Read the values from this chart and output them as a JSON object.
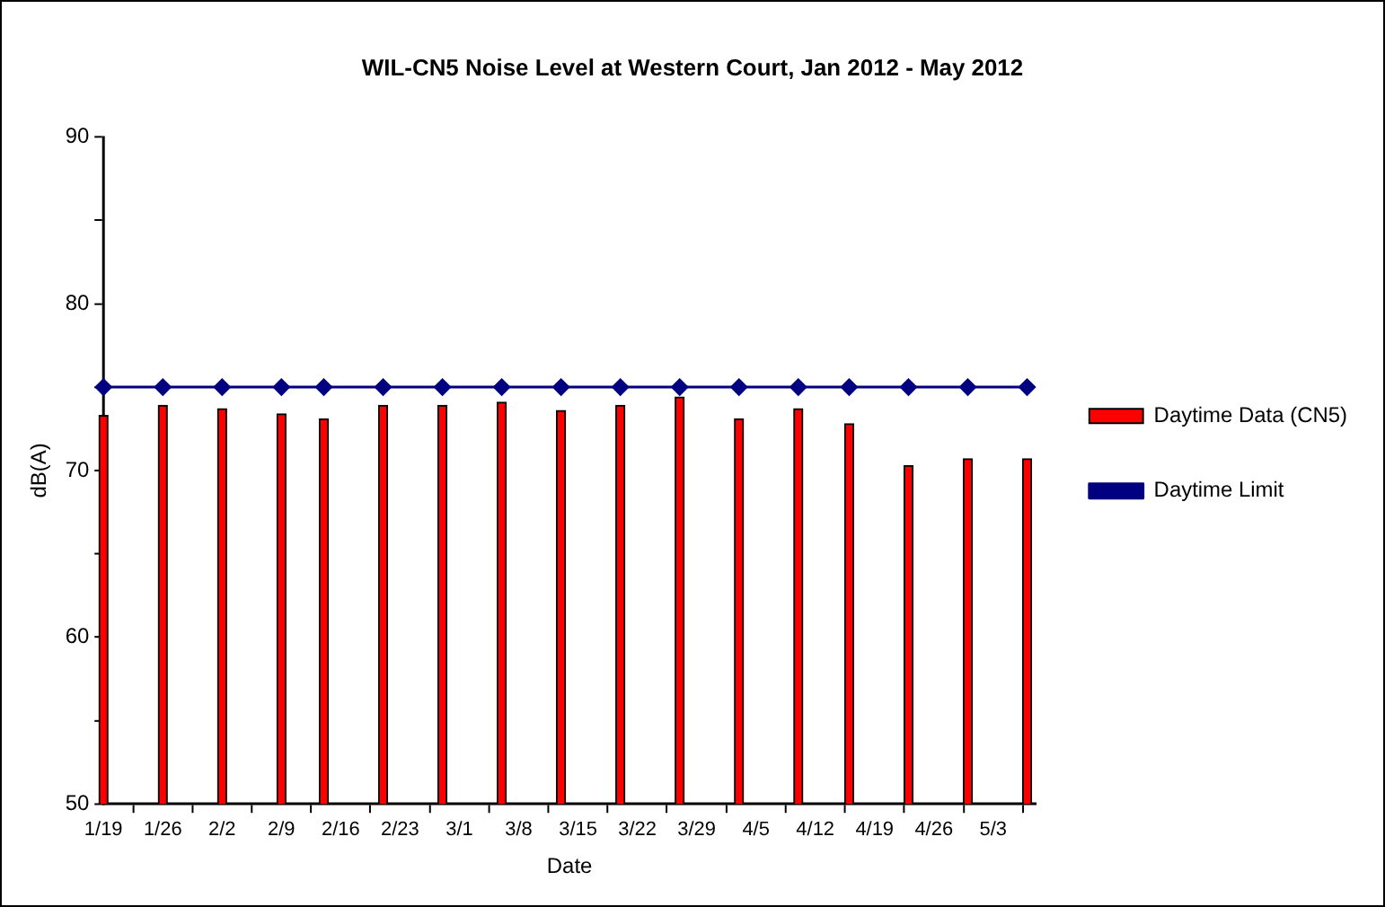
{
  "chart_data": {
    "type": "bar",
    "title": "WIL-CN5 Noise Level at Western Court, Jan 2012 - May 2012",
    "xlabel": "Date",
    "ylabel": "dB(A)",
    "x": [
      "2012-01-19",
      "2012-01-26",
      "2012-02-02",
      "2012-02-09",
      "2012-02-14",
      "2012-02-21",
      "2012-02-28",
      "2012-03-06",
      "2012-03-13",
      "2012-03-20",
      "2012-03-27",
      "2012-04-03",
      "2012-04-10",
      "2012-04-16",
      "2012-04-23",
      "2012-04-30",
      "2012-05-07"
    ],
    "series": [
      {
        "name": "Daytime Data (CN5)",
        "color": "#ff0000",
        "values": [
          73.3,
          73.9,
          73.7,
          73.4,
          73.1,
          73.9,
          73.9,
          74.1,
          73.6,
          73.9,
          74.4,
          73.1,
          73.7,
          72.8,
          70.3,
          70.7,
          70.7
        ]
      },
      {
        "name": "Daytime Limit",
        "type": "line",
        "color": "#000080",
        "marker": "diamond",
        "values": [
          75,
          75,
          75,
          75,
          75,
          75,
          75,
          75,
          75,
          75,
          75,
          75,
          75,
          75,
          75,
          75,
          75
        ]
      }
    ],
    "xlim": [
      "2012-01-19",
      "2012-05-08"
    ],
    "xticks": [
      {
        "value": "2012-01-19",
        "label": "1/19"
      },
      {
        "value": "2012-01-26",
        "label": "1/26"
      },
      {
        "value": "2012-02-02",
        "label": "2/2"
      },
      {
        "value": "2012-02-09",
        "label": "2/9"
      },
      {
        "value": "2012-02-16",
        "label": "2/16"
      },
      {
        "value": "2012-02-23",
        "label": "2/23"
      },
      {
        "value": "2012-03-01",
        "label": "3/1"
      },
      {
        "value": "2012-03-08",
        "label": "3/8"
      },
      {
        "value": "2012-03-15",
        "label": "3/15"
      },
      {
        "value": "2012-03-22",
        "label": "3/22"
      },
      {
        "value": "2012-03-29",
        "label": "3/29"
      },
      {
        "value": "2012-04-05",
        "label": "4/5"
      },
      {
        "value": "2012-04-12",
        "label": "4/12"
      },
      {
        "value": "2012-04-19",
        "label": "4/19"
      },
      {
        "value": "2012-04-26",
        "label": "4/26"
      },
      {
        "value": "2012-05-03",
        "label": "5/3"
      }
    ],
    "ylim": [
      50,
      90
    ],
    "yticks": [
      50,
      {
        "value": 55,
        "label": null
      },
      60,
      {
        "value": 65,
        "label": null
      },
      70,
      {
        "value": 75,
        "label": null
      },
      80,
      {
        "value": 85,
        "label": null
      },
      90
    ],
    "grid": false,
    "legend": "right"
  }
}
